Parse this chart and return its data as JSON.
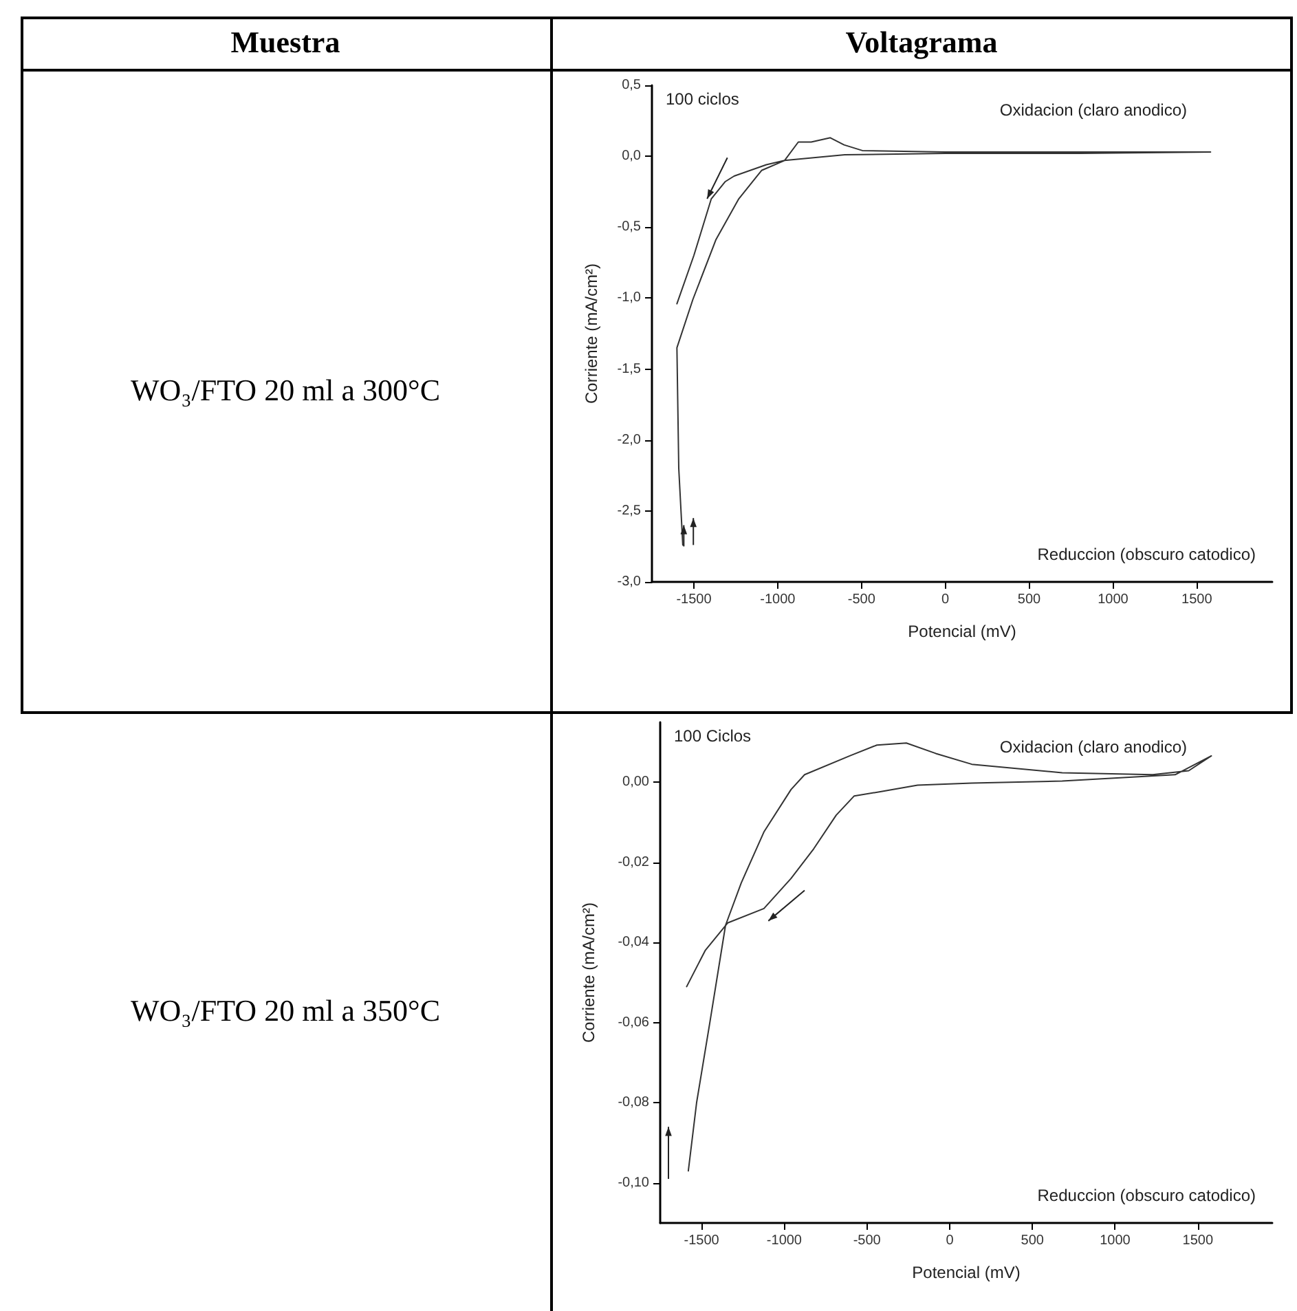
{
  "chart_data": [
    {
      "type": "line",
      "title": "WO₃/FTO 20 ml a 300°C",
      "annotations": [
        "Muestra",
        "Voltagrama",
        "100 ciclos",
        "Oxidacion (claro anodico)",
        "Reduccion (obscuro catodico)"
      ],
      "xlabel": "Potencial (mV)",
      "ylabel": "Corriente (mA/cm²)",
      "xlim": [
        -1750,
        1950
      ],
      "xticks": [
        -1500,
        -1000,
        -500,
        0,
        500,
        1000,
        1500
      ],
      "ylim": [
        -3.0,
        0.5
      ],
      "yticks": [
        {
          "value": -3.0,
          "label": "-3,0"
        },
        {
          "value": -2.5,
          "label": "-2,5"
        },
        {
          "value": -2.0,
          "label": "-2,0"
        },
        {
          "value": -1.5,
          "label": "-1,5"
        },
        {
          "value": -1.0,
          "label": "-1,0"
        },
        {
          "value": -0.5,
          "label": "-0,5"
        },
        {
          "value": 0,
          "label": "0,0"
        },
        {
          "value": 0.5,
          "label": "0,5"
        }
      ],
      "series": [
        {
          "color": "#333333",
          "x": [
            -1601,
            -1500,
            -1396,
            -1314,
            -1260,
            -1068,
            -959,
            -877,
            -800,
            -686,
            -604,
            -495,
            0,
            800,
            1582,
            800,
            0,
            -600,
            -959,
            -1096,
            -1232,
            -1369,
            -1506,
            -1601,
            -1590,
            -1566
          ],
          "values": [
            -1.04,
            -0.7,
            -0.3,
            -0.18,
            -0.14,
            -0.06,
            -0.03,
            0.1,
            0.1,
            0.13,
            0.08,
            0.04,
            0.03,
            0.03,
            0.03,
            0.02,
            0.02,
            0.01,
            -0.03,
            -0.1,
            -0.3,
            -0.59,
            -1.01,
            -1.35,
            -2.2,
            -2.74
          ]
        }
      ]
    },
    {
      "type": "line",
      "title": "WO₃/FTO 20 ml a 350°C",
      "annotations": [
        "100 Ciclos",
        "Oxidacion (claro anodico)",
        "Reduccion (obscuro catodico)"
      ],
      "xlabel": "Potencial (mV)",
      "ylabel": "Corriente (mA/cm²)",
      "xlim": [
        -1750,
        1950
      ],
      "xticks": [
        -1500,
        -1000,
        -500,
        0,
        500,
        1000,
        1500
      ],
      "ylim": [
        -0.11,
        0.015
      ],
      "yticks": [
        {
          "value": -0.1,
          "label": "-0,10"
        },
        {
          "value": -0.08,
          "label": "-0,08"
        },
        {
          "value": -0.06,
          "label": "-0,06"
        },
        {
          "value": -0.04,
          "label": "-0,04"
        },
        {
          "value": -0.02,
          "label": "-0,02"
        },
        {
          "value": 0,
          "label": "0,00"
        }
      ],
      "series": [
        {
          "color": "#333333",
          "x": [
            -1590,
            -1478,
            -1342,
            -1123,
            -959,
            -822,
            -686,
            -577,
            -413,
            -194,
            134,
            680,
            1363,
            1582,
            1445,
            1227,
            680,
            134,
            -84,
            -262,
            -440,
            -604,
            -877,
            -959,
            -1123,
            -1260,
            -1355,
            -1450,
            -1530,
            -1580
          ],
          "values": [
            -0.051,
            -0.042,
            -0.0351,
            -0.0315,
            -0.024,
            -0.0166,
            -0.0082,
            -0.0034,
            -0.0023,
            -0.0007,
            -0.0002,
            0.0003,
            0.0019,
            0.0066,
            0.0029,
            0.0019,
            0.0024,
            0.0045,
            0.0072,
            0.0098,
            0.0093,
            0.0066,
            0.0019,
            -0.0018,
            -0.0124,
            -0.0251,
            -0.0357,
            -0.06,
            -0.08,
            -0.097
          ]
        }
      ]
    }
  ]
}
